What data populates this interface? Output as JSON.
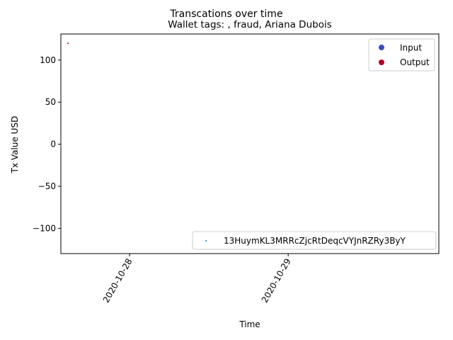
{
  "chart_data": {
    "type": "scatter",
    "title": "Transcations over time",
    "subtitle": "Wallet tags: , fraud, Ariana Dubois",
    "xlabel": "Time",
    "ylabel": "Tx Value USD",
    "x_ticks": [
      "2020-10-28",
      "2020-10-29"
    ],
    "y_ticks": [
      -100,
      -50,
      0,
      50,
      100
    ],
    "ylim": [
      -130,
      131
    ],
    "xlim": [
      "2020-10-27T13:36",
      "2020-10-29T22:48"
    ],
    "grid": false,
    "legends": [
      {
        "placement": "upper-right",
        "entries": [
          {
            "name": "Input",
            "color": "#3b4cc0"
          },
          {
            "name": "Output",
            "color": "#b40426"
          }
        ]
      },
      {
        "placement": "lower-right",
        "entries": [
          {
            "name": "13HuymKL3MRRcZjcRtDeqcVYJnRZRy3ByY",
            "color": "#1f77b4"
          }
        ]
      }
    ],
    "points": [
      {
        "x": "2020-10-27T14:40",
        "y": 120,
        "kind": "Output",
        "color": "#b40426"
      }
    ]
  }
}
